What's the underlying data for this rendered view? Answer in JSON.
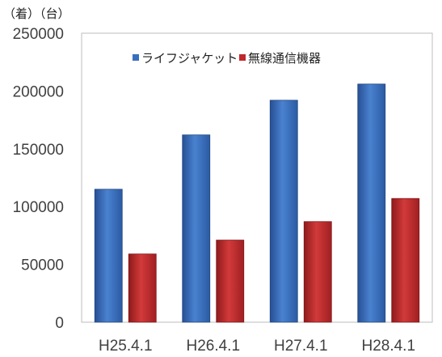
{
  "chart_data": {
    "type": "bar",
    "unit_label": "（着）（台）",
    "categories": [
      "H25.4.1",
      "H26.4.1",
      "H27.4.1",
      "H28.4.1"
    ],
    "series": [
      {
        "name": "ライフジャケット",
        "values": [
          115000,
          162000,
          192000,
          206000
        ],
        "color": "#3a6fbf"
      },
      {
        "name": "無線通信機器",
        "values": [
          59000,
          71000,
          87000,
          107000
        ],
        "color": "#c0282b"
      }
    ],
    "ylim": [
      0,
      250000
    ],
    "yticks": [
      "0",
      "50000",
      "100000",
      "150000",
      "200000",
      "250000"
    ],
    "grid": false,
    "legend_position": "top-left"
  }
}
